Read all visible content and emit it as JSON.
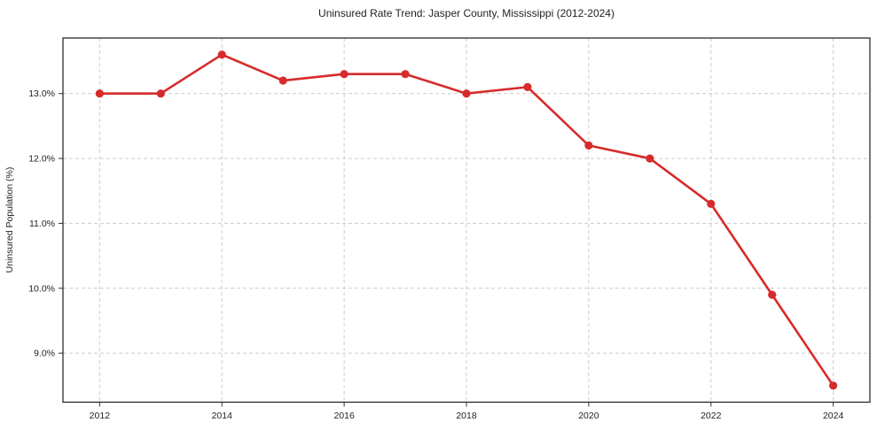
{
  "chart_data": {
    "type": "line",
    "title": "Uninsured Rate Trend: Jasper County, Mississippi (2012-2024)",
    "xlabel": "",
    "ylabel": "Uninsured Population (%)",
    "x": [
      2012,
      2013,
      2014,
      2015,
      2016,
      2017,
      2018,
      2019,
      2020,
      2021,
      2022,
      2023,
      2024
    ],
    "values": [
      13.0,
      13.0,
      13.6,
      13.2,
      13.3,
      13.3,
      13.0,
      13.1,
      12.2,
      12.0,
      11.3,
      9.9,
      8.5
    ],
    "xlim": [
      2011.4,
      2024.6
    ],
    "ylim": [
      8.245,
      13.855
    ],
    "xticks": [
      2012,
      2014,
      2016,
      2018,
      2020,
      2022,
      2024
    ],
    "xtick_labels": [
      "2012",
      "2014",
      "2016",
      "2018",
      "2020",
      "2022",
      "2024"
    ],
    "yticks": [
      9.0,
      10.0,
      11.0,
      12.0,
      13.0
    ],
    "ytick_labels": [
      "9.0%",
      "10.0%",
      "11.0%",
      "12.0%",
      "13.0%"
    ],
    "grid": true,
    "grid_style": "dashed",
    "legend": false,
    "colors": {
      "line": "#d62b2b",
      "marker": "#d62b2b",
      "grid": "#cccccc",
      "spine": "#1a1a1a",
      "tick": "#333333",
      "text": "#1f1f1f",
      "background": "#ffffff"
    }
  }
}
